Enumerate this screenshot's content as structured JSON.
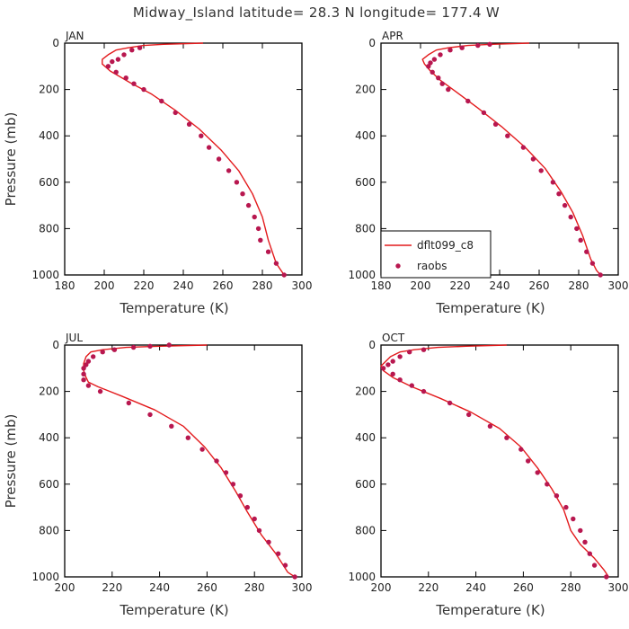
{
  "title": "Midway_Island  latitude= 28.3 N longitude= 177.4 W",
  "colors": {
    "model": "#e31a1c",
    "obs": "#b8174f",
    "axis": "#000000"
  },
  "legend": {
    "model_label": "dflt099_c8",
    "obs_label": "raobs"
  },
  "chart_data": [
    {
      "type": "line",
      "panel": "JAN",
      "xlabel": "Temperature (K)",
      "ylabel": "Pressure (mb)",
      "xlim": [
        180,
        300
      ],
      "ylim": [
        0,
        1000
      ],
      "xticks": [
        180,
        200,
        220,
        240,
        260,
        280,
        300
      ],
      "yticks": [
        0,
        200,
        400,
        600,
        800,
        1000
      ],
      "y_inverted": true,
      "series": [
        {
          "name": "dflt099_c8",
          "kind": "line",
          "points": [
            [
              250,
              0
            ],
            [
              230,
              5
            ],
            [
              220,
              10
            ],
            [
              212,
              20
            ],
            [
              206,
              30
            ],
            [
              202,
              50
            ],
            [
              199,
              70
            ],
            [
              199,
              90
            ],
            [
              203,
              120
            ],
            [
              213,
              170
            ],
            [
              224,
              220
            ],
            [
              236,
              290
            ],
            [
              248,
              370
            ],
            [
              259,
              460
            ],
            [
              268,
              550
            ],
            [
              275,
              650
            ],
            [
              280,
              750
            ],
            [
              283,
              850
            ],
            [
              287,
              950
            ],
            [
              291,
              1000
            ]
          ]
        },
        {
          "name": "raobs",
          "kind": "scatter",
          "points": [
            [
              218,
              20
            ],
            [
              214,
              30
            ],
            [
              210,
              50
            ],
            [
              207,
              70
            ],
            [
              204,
              80
            ],
            [
              202,
              100
            ],
            [
              206,
              125
            ],
            [
              211,
              150
            ],
            [
              215,
              175
            ],
            [
              220,
              200
            ],
            [
              229,
              250
            ],
            [
              236,
              300
            ],
            [
              243,
              350
            ],
            [
              249,
              400
            ],
            [
              253,
              450
            ],
            [
              258,
              500
            ],
            [
              263,
              550
            ],
            [
              267,
              600
            ],
            [
              270,
              650
            ],
            [
              273,
              700
            ],
            [
              276,
              750
            ],
            [
              278,
              800
            ],
            [
              279,
              850
            ],
            [
              283,
              900
            ],
            [
              287,
              950
            ],
            [
              291,
              1000
            ]
          ]
        }
      ]
    },
    {
      "type": "line",
      "panel": "APR",
      "xlabel": "Temperature (K)",
      "ylabel": "",
      "xlim": [
        180,
        300
      ],
      "ylim": [
        0,
        1000
      ],
      "xticks": [
        180,
        200,
        220,
        240,
        260,
        280,
        300
      ],
      "yticks": [
        0,
        200,
        400,
        600,
        800,
        1000
      ],
      "y_inverted": true,
      "series": [
        {
          "name": "dflt099_c8",
          "kind": "line",
          "points": [
            [
              255,
              0
            ],
            [
              236,
              5
            ],
            [
              224,
              10
            ],
            [
              214,
              20
            ],
            [
              208,
              30
            ],
            [
              204,
              50
            ],
            [
              201,
              70
            ],
            [
              202,
              90
            ],
            [
              205,
              120
            ],
            [
              210,
              160
            ],
            [
              218,
              210
            ],
            [
              229,
              280
            ],
            [
              241,
              360
            ],
            [
              253,
              450
            ],
            [
              263,
              540
            ],
            [
              271,
              640
            ],
            [
              277,
              730
            ],
            [
              282,
              830
            ],
            [
              286,
              930
            ],
            [
              289,
              980
            ],
            [
              291,
              1000
            ]
          ]
        },
        {
          "name": "raobs",
          "kind": "scatter",
          "points": [
            [
              235,
              5
            ],
            [
              229,
              10
            ],
            [
              221,
              20
            ],
            [
              215,
              30
            ],
            [
              210,
              50
            ],
            [
              207,
              70
            ],
            [
              205,
              85
            ],
            [
              204,
              100
            ],
            [
              206,
              125
            ],
            [
              209,
              150
            ],
            [
              211,
              175
            ],
            [
              214,
              200
            ],
            [
              224,
              250
            ],
            [
              232,
              300
            ],
            [
              238,
              350
            ],
            [
              244,
              400
            ],
            [
              252,
              450
            ],
            [
              257,
              500
            ],
            [
              261,
              550
            ],
            [
              267,
              600
            ],
            [
              270,
              650
            ],
            [
              273,
              700
            ],
            [
              276,
              750
            ],
            [
              279,
              800
            ],
            [
              281,
              850
            ],
            [
              284,
              900
            ],
            [
              287,
              950
            ],
            [
              291,
              1000
            ]
          ]
        }
      ]
    },
    {
      "type": "line",
      "panel": "JUL",
      "xlabel": "Temperature (K)",
      "ylabel": "Pressure (mb)",
      "xlim": [
        200,
        300
      ],
      "ylim": [
        0,
        1000
      ],
      "xticks": [
        200,
        220,
        240,
        260,
        280,
        300
      ],
      "yticks": [
        0,
        200,
        400,
        600,
        800,
        1000
      ],
      "y_inverted": true,
      "series": [
        {
          "name": "dflt099_c8",
          "kind": "line",
          "points": [
            [
              260,
              0
            ],
            [
              240,
              5
            ],
            [
              226,
              10
            ],
            [
              216,
              20
            ],
            [
              211,
              30
            ],
            [
              209,
              50
            ],
            [
              208,
              80
            ],
            [
              208,
              110
            ],
            [
              209,
              140
            ],
            [
              210,
              160
            ],
            [
              214,
              180
            ],
            [
              224,
              220
            ],
            [
              238,
              280
            ],
            [
              250,
              350
            ],
            [
              259,
              440
            ],
            [
              266,
              530
            ],
            [
              272,
              630
            ],
            [
              277,
              720
            ],
            [
              283,
              820
            ],
            [
              289,
              900
            ],
            [
              294,
              980
            ],
            [
              297,
              1000
            ]
          ]
        },
        {
          "name": "raobs",
          "kind": "scatter",
          "points": [
            [
              244,
              0
            ],
            [
              236,
              5
            ],
            [
              229,
              10
            ],
            [
              221,
              20
            ],
            [
              216,
              30
            ],
            [
              212,
              50
            ],
            [
              210,
              70
            ],
            [
              209,
              85
            ],
            [
              208,
              100
            ],
            [
              208,
              125
            ],
            [
              208,
              150
            ],
            [
              210,
              175
            ],
            [
              215,
              200
            ],
            [
              227,
              250
            ],
            [
              236,
              300
            ],
            [
              245,
              350
            ],
            [
              252,
              400
            ],
            [
              258,
              450
            ],
            [
              264,
              500
            ],
            [
              268,
              550
            ],
            [
              271,
              600
            ],
            [
              274,
              650
            ],
            [
              277,
              700
            ],
            [
              280,
              750
            ],
            [
              282,
              800
            ],
            [
              286,
              850
            ],
            [
              290,
              900
            ],
            [
              293,
              950
            ],
            [
              297,
              1000
            ]
          ]
        }
      ]
    },
    {
      "type": "line",
      "panel": "OCT",
      "xlabel": "Temperature (K)",
      "ylabel": "",
      "xlim": [
        200,
        300
      ],
      "ylim": [
        0,
        1000
      ],
      "xticks": [
        200,
        220,
        240,
        260,
        280,
        300
      ],
      "yticks": [
        0,
        200,
        400,
        600,
        800,
        1000
      ],
      "y_inverted": true,
      "series": [
        {
          "name": "dflt099_c8",
          "kind": "line",
          "points": [
            [
              253,
              0
            ],
            [
              236,
              5
            ],
            [
              224,
              10
            ],
            [
              214,
              20
            ],
            [
              208,
              30
            ],
            [
              204,
              50
            ],
            [
              202,
              70
            ],
            [
              200,
              90
            ],
            [
              201,
              110
            ],
            [
              205,
              140
            ],
            [
              213,
              180
            ],
            [
              225,
              230
            ],
            [
              238,
              290
            ],
            [
              250,
              360
            ],
            [
              259,
              440
            ],
            [
              266,
              530
            ],
            [
              272,
              620
            ],
            [
              277,
              710
            ],
            [
              280,
              800
            ],
            [
              284,
              860
            ],
            [
              290,
              920
            ],
            [
              294,
              970
            ],
            [
              296,
              1000
            ]
          ]
        },
        {
          "name": "raobs",
          "kind": "scatter",
          "points": [
            [
              218,
              20
            ],
            [
              212,
              30
            ],
            [
              208,
              50
            ],
            [
              205,
              70
            ],
            [
              203,
              85
            ],
            [
              201,
              100
            ],
            [
              205,
              125
            ],
            [
              208,
              150
            ],
            [
              213,
              175
            ],
            [
              218,
              200
            ],
            [
              229,
              250
            ],
            [
              237,
              300
            ],
            [
              246,
              350
            ],
            [
              253,
              400
            ],
            [
              259,
              450
            ],
            [
              262,
              500
            ],
            [
              266,
              550
            ],
            [
              270,
              600
            ],
            [
              274,
              650
            ],
            [
              278,
              700
            ],
            [
              281,
              750
            ],
            [
              284,
              800
            ],
            [
              286,
              850
            ],
            [
              288,
              900
            ],
            [
              290,
              950
            ],
            [
              295,
              1000
            ]
          ]
        }
      ]
    }
  ]
}
